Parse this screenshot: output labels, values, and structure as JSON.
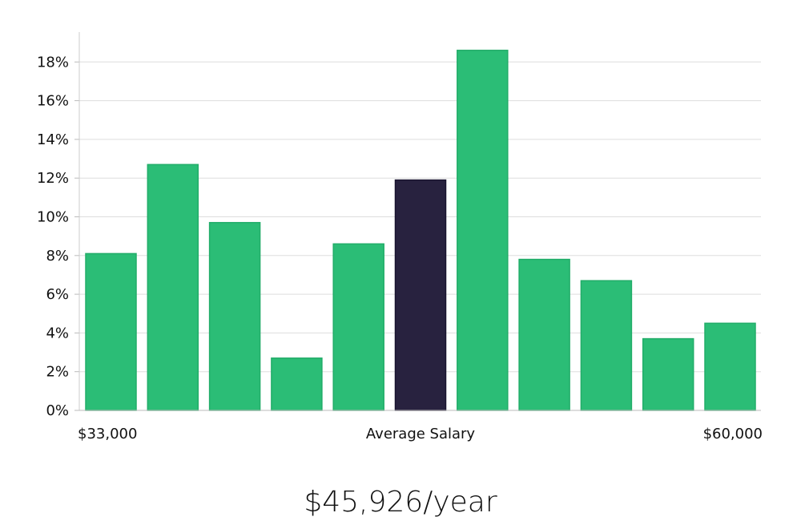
{
  "chart_data": {
    "type": "bar",
    "title": "",
    "xlabel": "Average Salary",
    "ylabel": "",
    "x_min_label": "$33,000",
    "x_max_label": "$60,000",
    "ylim": [
      0,
      19.5
    ],
    "yticks": [
      0,
      2,
      4,
      6,
      8,
      10,
      12,
      14,
      16,
      18
    ],
    "ytick_labels": [
      "0%",
      "2%",
      "4%",
      "6%",
      "8%",
      "10%",
      "12%",
      "14%",
      "16%",
      "18%"
    ],
    "values": [
      8.1,
      12.7,
      9.7,
      2.7,
      8.6,
      11.9,
      18.6,
      7.8,
      6.7,
      3.7,
      4.5
    ],
    "highlight_index": 5,
    "colors": {
      "bar": "#2bbd76",
      "highlight": "#28223f",
      "grid": "#dddddd",
      "axis": "#bbbbbb"
    },
    "grid": true
  },
  "salary_text": "$45,926/year"
}
